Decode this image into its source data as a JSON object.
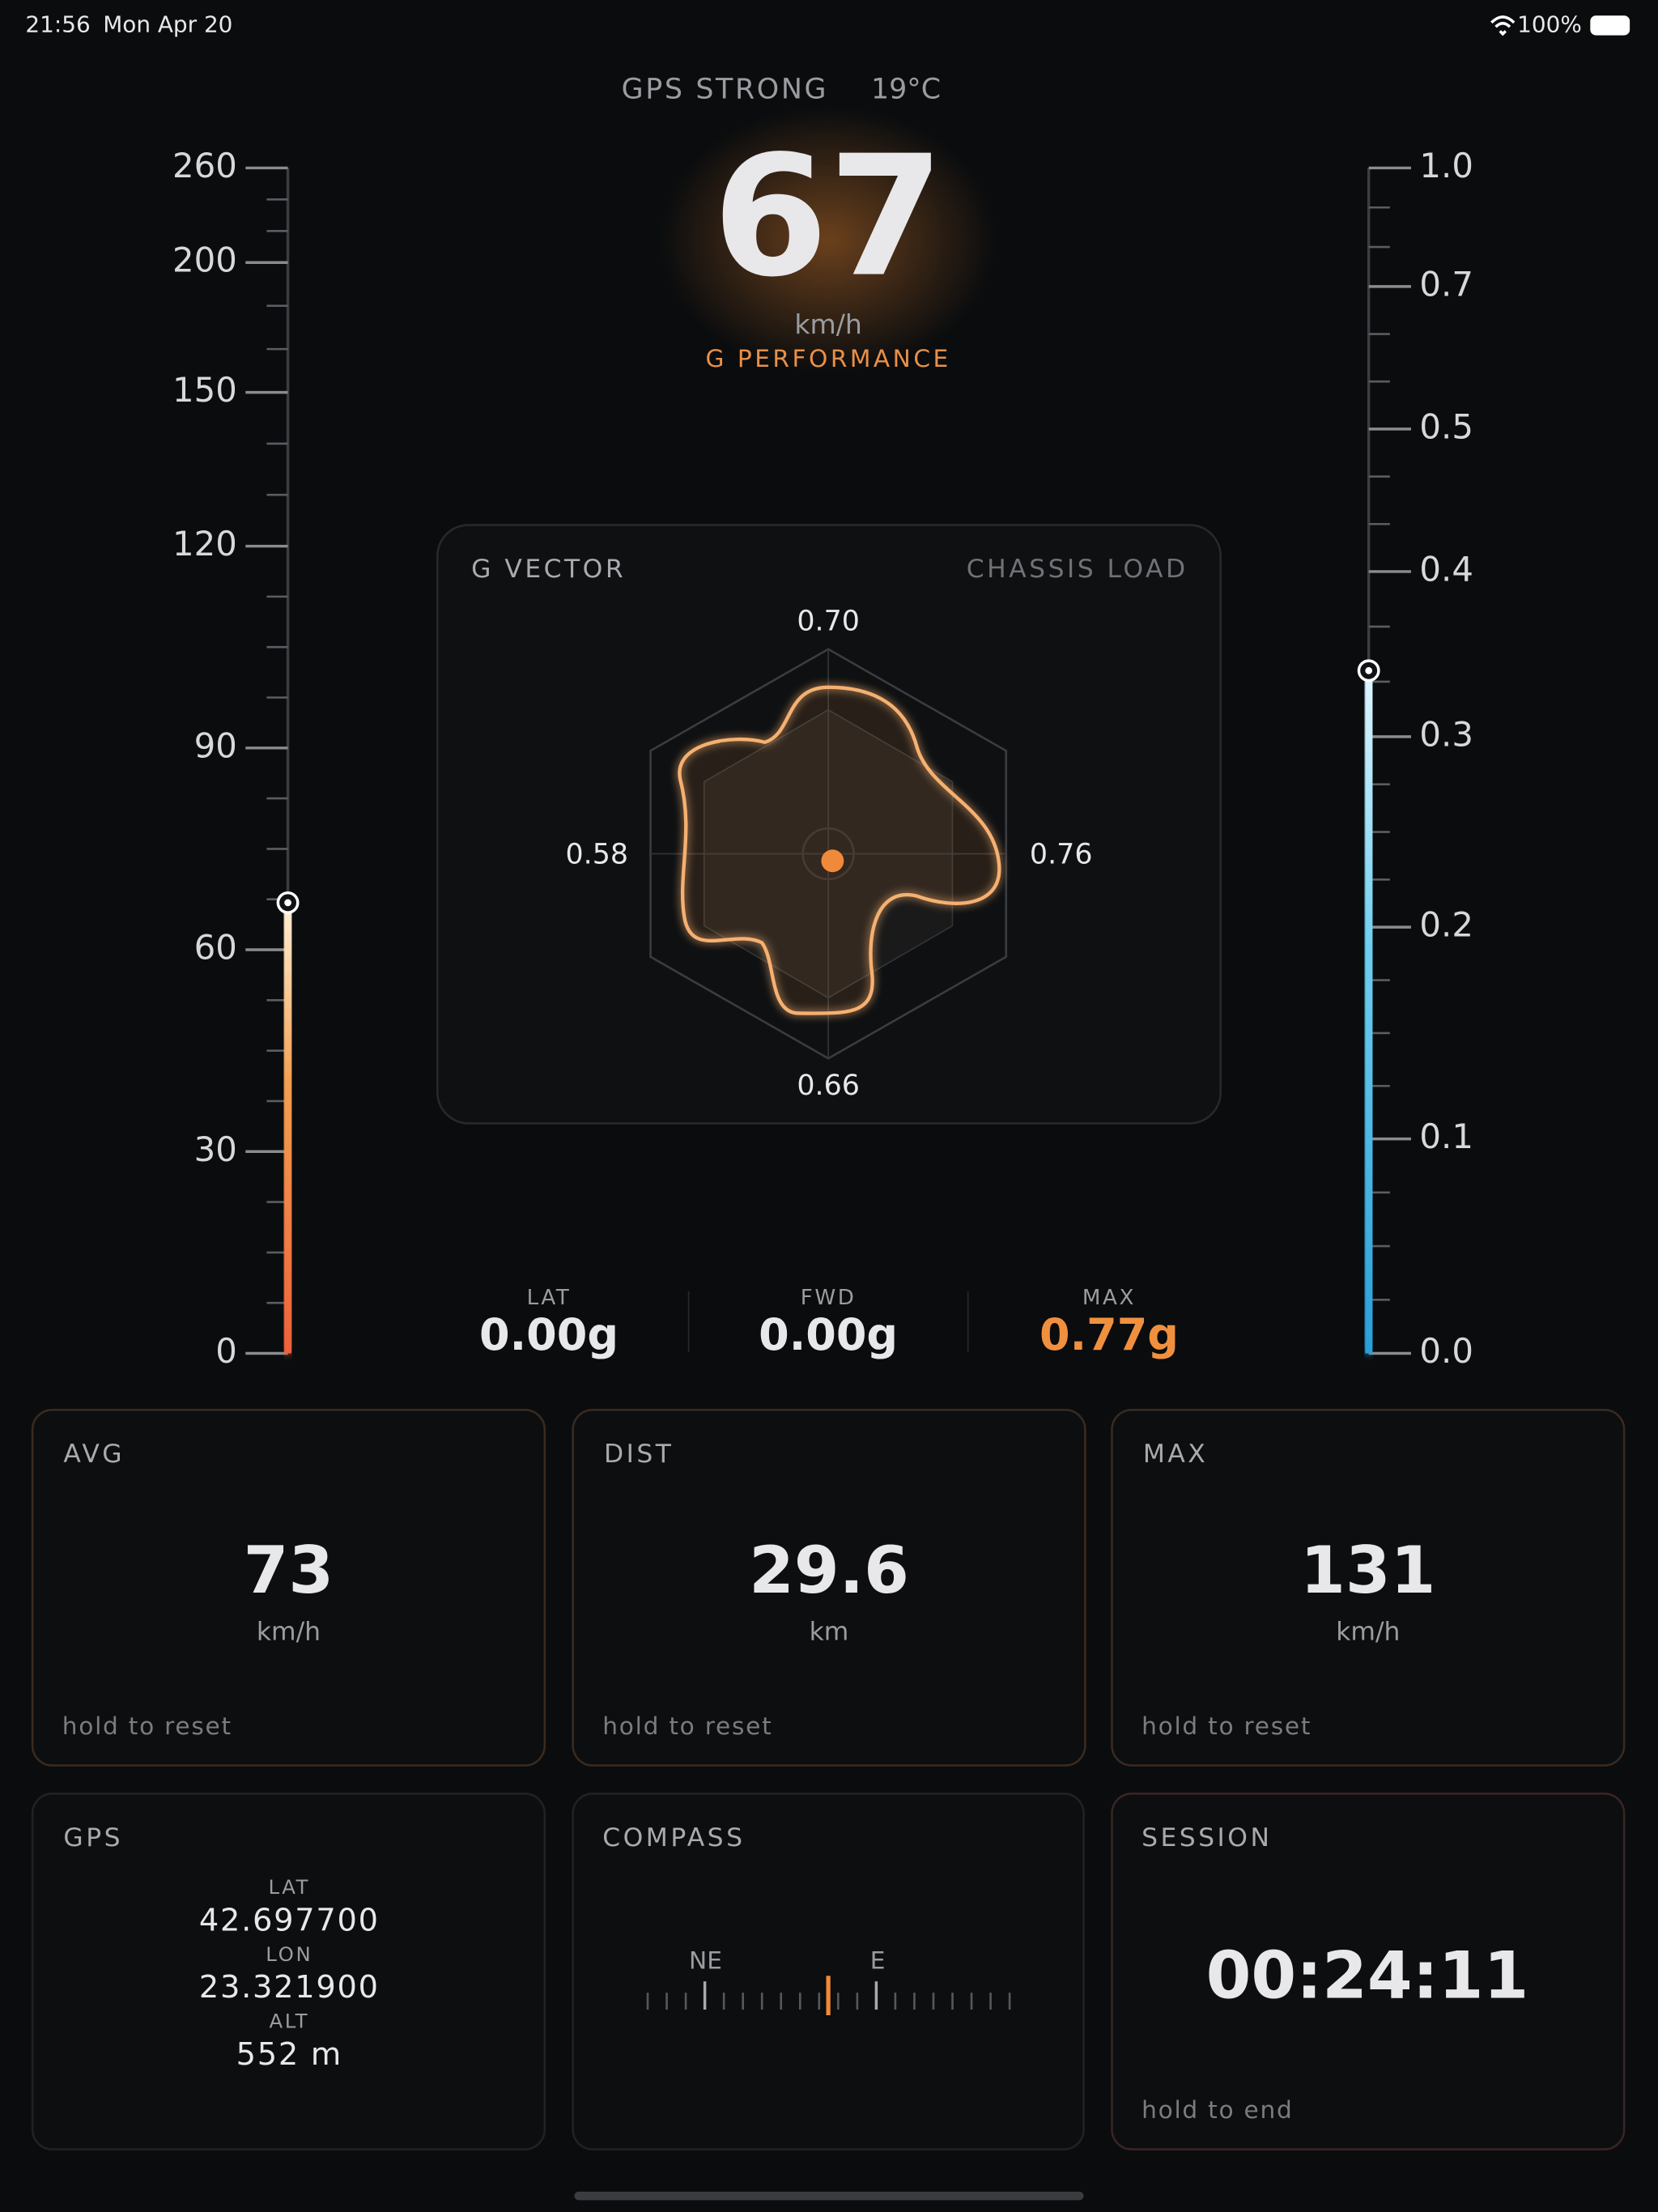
{
  "status_bar": {
    "time": "21:56",
    "date": "Mon Apr 20",
    "battery": "100%"
  },
  "header": {
    "signal": "GPS STRONG",
    "temperature": "19°C",
    "speed": 67,
    "speed_unit": "km/h",
    "mode": "G PERFORMANCE"
  },
  "speed_gauge": {
    "ticks": [
      0,
      30,
      60,
      90,
      120,
      150,
      200,
      260
    ]
  },
  "g_gauge": {
    "ticks": [
      {
        "value": 0,
        "label": "0.0"
      },
      0.1,
      0.2,
      0.3,
      0.4,
      0.5,
      0.7,
      {
        "value": 1,
        "label": "1.0"
      }
    ],
    "value": 0.34
  },
  "g_vector": {
    "title": "G VECTOR",
    "subtitle": "CHASSIS LOAD",
    "axis_labels": {
      "top": "0.70",
      "left": "0.58",
      "right": "0.76",
      "bottom": "0.66"
    }
  },
  "g_readouts": [
    {
      "label": "LAT",
      "value": "0.00g"
    },
    {
      "label": "FWD",
      "value": "0.00g"
    },
    {
      "label": "MAX",
      "value": "0.77g"
    }
  ],
  "cards": [
    {
      "title": "AVG",
      "value": 73,
      "unit": "km/h",
      "hint": "hold to reset"
    },
    {
      "title": "DIST",
      "value": 29.6,
      "unit": "km",
      "hint": "hold to reset"
    },
    {
      "title": "MAX",
      "value": 131,
      "unit": "km/h",
      "hint": "hold to reset"
    }
  ],
  "gps": {
    "title": "GPS",
    "rows": [
      {
        "label": "LAT",
        "value": "42.697700"
      },
      {
        "label": "LON",
        "value": "23.321900"
      },
      {
        "label": "ALT",
        "value": "552 m"
      }
    ]
  },
  "compass": {
    "title": "COMPASS",
    "labels": [
      "NE",
      "E"
    ]
  },
  "session": {
    "title": "SESSION",
    "elapsed": "00:24:11",
    "hint": "hold to end"
  }
}
